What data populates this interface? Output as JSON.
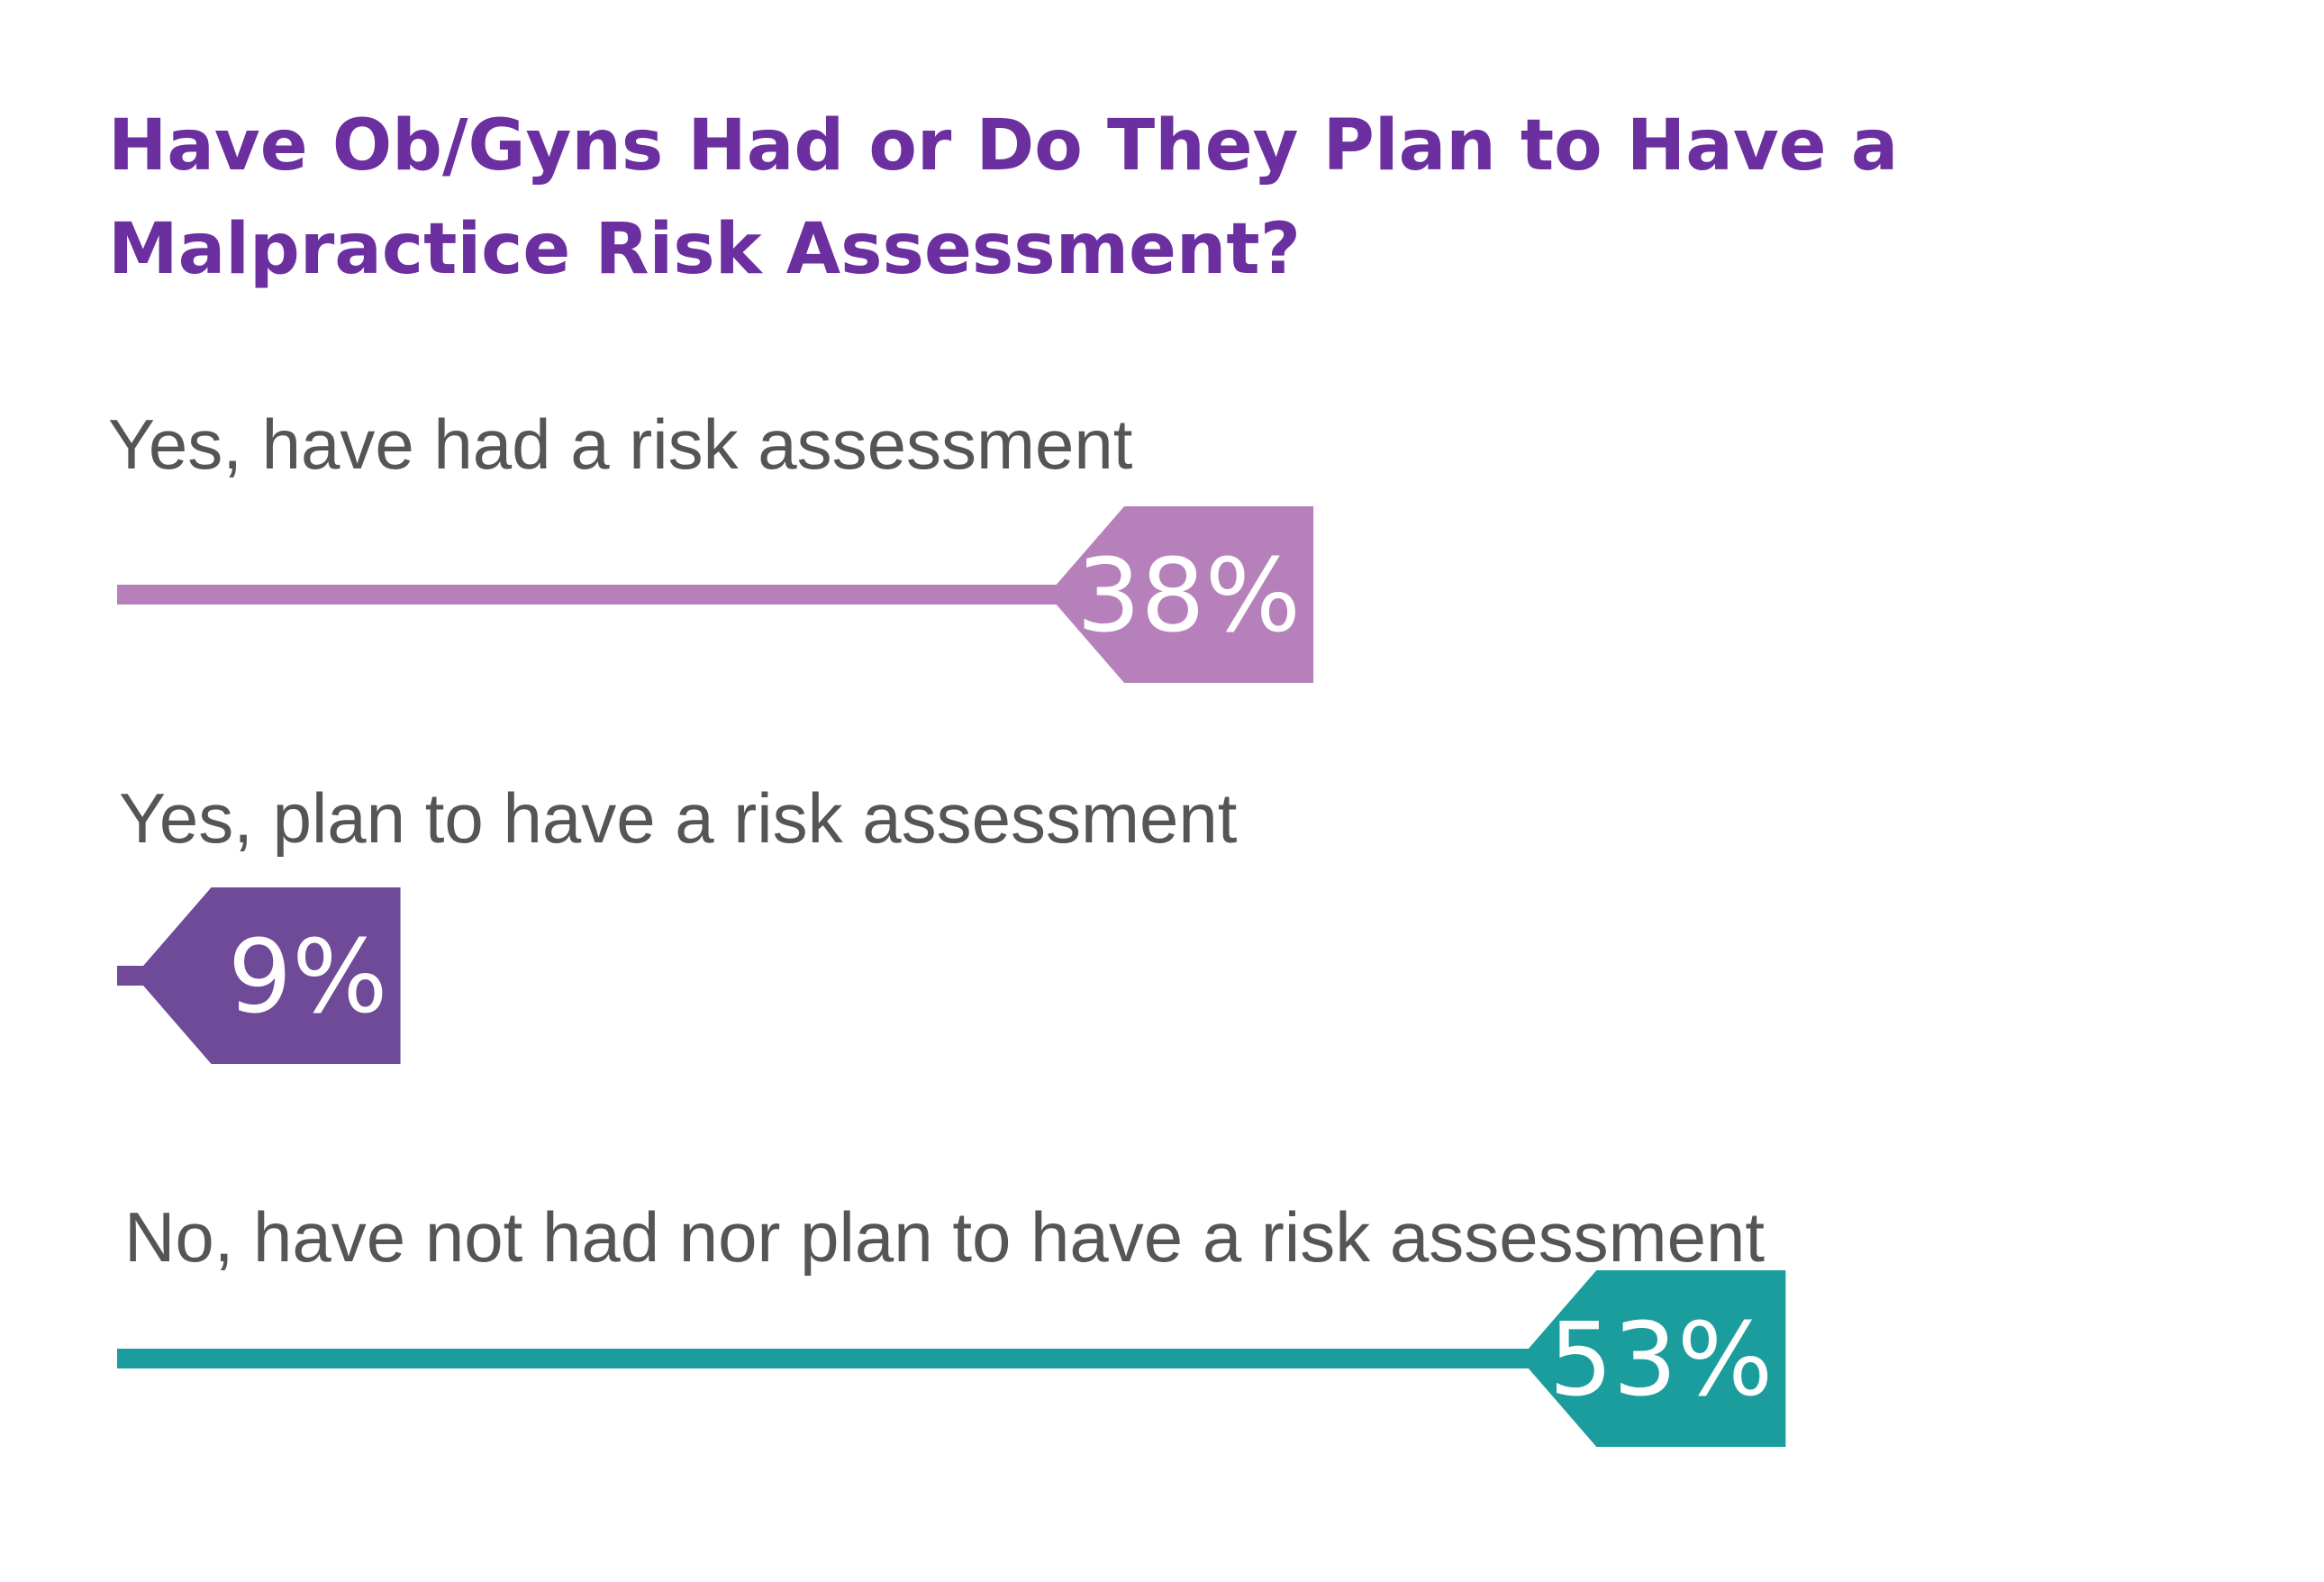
{
  "chart_data": {
    "type": "bar",
    "title": "Have Ob/Gyns Had or Do They Plan to Have a Malpractice Risk Assessment?",
    "categories": [
      "Yes, have had a risk assessment",
      "Yes, plan to have a risk assessment",
      "No, have not had nor plan to have a risk assessment"
    ],
    "values": [
      38,
      9,
      53
    ],
    "value_labels": [
      "38%",
      "9%",
      "53%"
    ],
    "colors": [
      "#b681bb",
      "#6e4a99",
      "#1b9c9d"
    ],
    "unit": "%",
    "orientation": "horizontal",
    "grid": false,
    "legend": "none"
  }
}
